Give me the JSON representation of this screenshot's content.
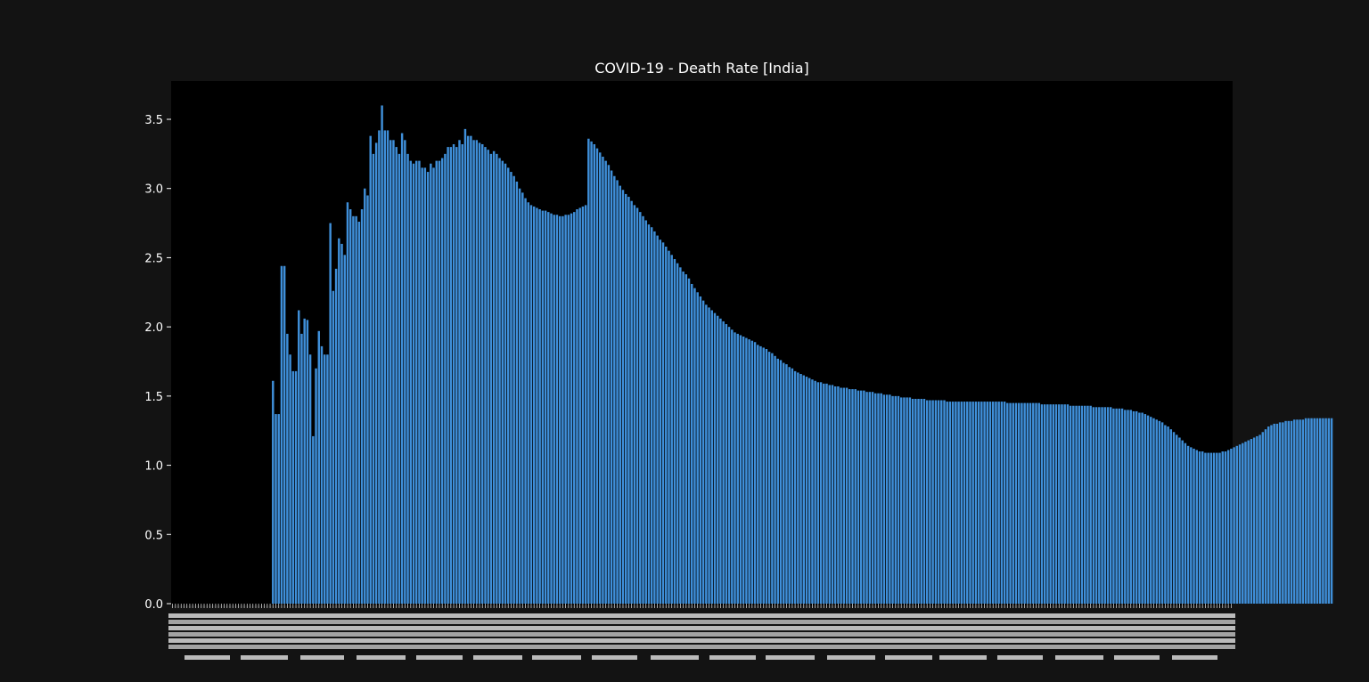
{
  "chart_data": {
    "type": "bar",
    "title": "COVID-19 - Death Rate [India]",
    "xlabel": "",
    "ylabel": "",
    "ylim": [
      0,
      3.75
    ],
    "y_ticks": [
      "0.0",
      "0.5",
      "1.0",
      "1.5",
      "2.0",
      "2.5",
      "3.0",
      "3.5"
    ],
    "x_tick_labels_legible": false,
    "grid": false,
    "bar_color": "#3f8fd9",
    "plot_background": "#000000",
    "figure_background": "#131313",
    "total_bars": 370,
    "leading_zero_bars": 35,
    "values": [
      1.61,
      1.37,
      1.37,
      2.44,
      2.44,
      1.95,
      1.8,
      1.68,
      1.68,
      2.12,
      1.95,
      2.06,
      2.05,
      1.8,
      1.21,
      1.7,
      1.97,
      1.86,
      1.8,
      1.8,
      2.75,
      2.26,
      2.42,
      2.64,
      2.6,
      2.52,
      2.9,
      2.85,
      2.8,
      2.8,
      2.76,
      2.85,
      3.0,
      2.95,
      3.38,
      3.25,
      3.33,
      3.42,
      3.6,
      3.42,
      3.42,
      3.35,
      3.35,
      3.3,
      3.25,
      3.4,
      3.35,
      3.25,
      3.2,
      3.18,
      3.2,
      3.2,
      3.15,
      3.15,
      3.12,
      3.18,
      3.15,
      3.2,
      3.2,
      3.22,
      3.25,
      3.3,
      3.3,
      3.32,
      3.3,
      3.35,
      3.32,
      3.43,
      3.38,
      3.38,
      3.35,
      3.35,
      3.33,
      3.32,
      3.3,
      3.28,
      3.25,
      3.27,
      3.25,
      3.22,
      3.2,
      3.18,
      3.15,
      3.12,
      3.09,
      3.05,
      3.0,
      2.97,
      2.93,
      2.9,
      2.88,
      2.87,
      2.86,
      2.85,
      2.84,
      2.84,
      2.83,
      2.82,
      2.81,
      2.81,
      2.8,
      2.8,
      2.81,
      2.81,
      2.82,
      2.83,
      2.85,
      2.86,
      2.87,
      2.88,
      3.36,
      3.34,
      3.32,
      3.29,
      3.26,
      3.23,
      3.2,
      3.17,
      3.13,
      3.09,
      3.06,
      3.02,
      2.99,
      2.96,
      2.94,
      2.91,
      2.88,
      2.86,
      2.83,
      2.8,
      2.77,
      2.74,
      2.72,
      2.69,
      2.66,
      2.63,
      2.61,
      2.58,
      2.55,
      2.52,
      2.49,
      2.46,
      2.43,
      2.4,
      2.38,
      2.35,
      2.31,
      2.28,
      2.25,
      2.22,
      2.19,
      2.16,
      2.14,
      2.12,
      2.1,
      2.08,
      2.06,
      2.04,
      2.02,
      2.0,
      1.98,
      1.96,
      1.95,
      1.94,
      1.93,
      1.92,
      1.91,
      1.9,
      1.89,
      1.87,
      1.86,
      1.85,
      1.84,
      1.82,
      1.81,
      1.79,
      1.77,
      1.76,
      1.74,
      1.73,
      1.71,
      1.7,
      1.68,
      1.67,
      1.66,
      1.65,
      1.64,
      1.63,
      1.62,
      1.61,
      1.6,
      1.6,
      1.59,
      1.59,
      1.58,
      1.58,
      1.57,
      1.57,
      1.56,
      1.56,
      1.56,
      1.55,
      1.55,
      1.55,
      1.54,
      1.54,
      1.54,
      1.53,
      1.53,
      1.53,
      1.52,
      1.52,
      1.52,
      1.51,
      1.51,
      1.51,
      1.5,
      1.5,
      1.5,
      1.49,
      1.49,
      1.49,
      1.49,
      1.48,
      1.48,
      1.48,
      1.48,
      1.48,
      1.47,
      1.47,
      1.47,
      1.47,
      1.47,
      1.47,
      1.47,
      1.46,
      1.46,
      1.46,
      1.46,
      1.46,
      1.46,
      1.46,
      1.46,
      1.46,
      1.46,
      1.46,
      1.46,
      1.46,
      1.46,
      1.46,
      1.46,
      1.46,
      1.46,
      1.46,
      1.46,
      1.46,
      1.45,
      1.45,
      1.45,
      1.45,
      1.45,
      1.45,
      1.45,
      1.45,
      1.45,
      1.45,
      1.45,
      1.45,
      1.44,
      1.44,
      1.44,
      1.44,
      1.44,
      1.44,
      1.44,
      1.44,
      1.44,
      1.44,
      1.43,
      1.43,
      1.43,
      1.43,
      1.43,
      1.43,
      1.43,
      1.43,
      1.42,
      1.42,
      1.42,
      1.42,
      1.42,
      1.42,
      1.42,
      1.41,
      1.41,
      1.41,
      1.41,
      1.4,
      1.4,
      1.4,
      1.39,
      1.39,
      1.38,
      1.38,
      1.37,
      1.36,
      1.35,
      1.34,
      1.33,
      1.32,
      1.31,
      1.29,
      1.28,
      1.26,
      1.24,
      1.22,
      1.2,
      1.18,
      1.16,
      1.14,
      1.13,
      1.12,
      1.11,
      1.1,
      1.1,
      1.09,
      1.09,
      1.09,
      1.09,
      1.09,
      1.09,
      1.1,
      1.1,
      1.11,
      1.12,
      1.13,
      1.14,
      1.15,
      1.16,
      1.17,
      1.18,
      1.19,
      1.2,
      1.21,
      1.22,
      1.24,
      1.26,
      1.28,
      1.29,
      1.3,
      1.3,
      1.31,
      1.31,
      1.32,
      1.32,
      1.32,
      1.33,
      1.33,
      1.33,
      1.33,
      1.34,
      1.34,
      1.34,
      1.34,
      1.34,
      1.34,
      1.34,
      1.34,
      1.34,
      1.34
    ]
  }
}
